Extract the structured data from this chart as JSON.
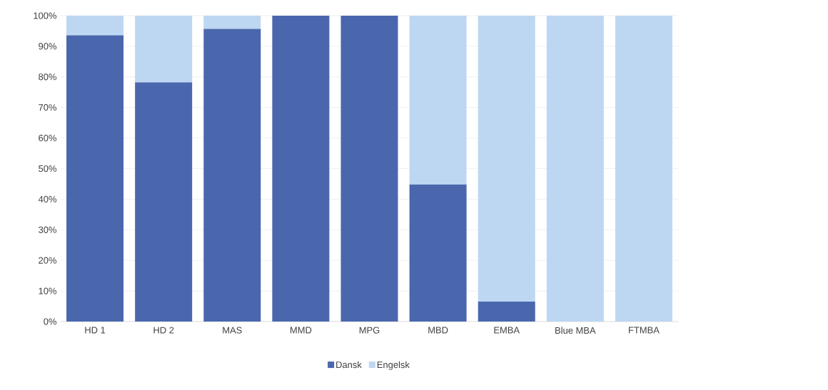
{
  "chart_data": {
    "type": "bar",
    "stacked": true,
    "categories": [
      "HD 1",
      "HD 2",
      "MAS",
      "MMD",
      "MPG",
      "MBD",
      "EMBA",
      "Blue MBA",
      "FTMBA"
    ],
    "series": [
      {
        "name": "Dansk",
        "color": "#4a67ad",
        "values": [
          93.6,
          78.2,
          95.7,
          100,
          100,
          44.8,
          6.5,
          0,
          0
        ]
      },
      {
        "name": "Engelsk",
        "color": "#bdd7f3",
        "values": [
          6.4,
          21.8,
          4.3,
          0,
          0,
          55.2,
          93.5,
          100,
          100
        ]
      }
    ],
    "ylim": [
      0,
      100
    ],
    "yticks": [
      {
        "value": 0,
        "label": "0%"
      },
      {
        "value": 10,
        "label": "10%"
      },
      {
        "value": 20,
        "label": "20%"
      },
      {
        "value": 30,
        "label": "30%"
      },
      {
        "value": 40,
        "label": "40%"
      },
      {
        "value": 50,
        "label": "50%"
      },
      {
        "value": 60,
        "label": "60%"
      },
      {
        "value": 70,
        "label": "70%"
      },
      {
        "value": 80,
        "label": "80%"
      },
      {
        "value": 90,
        "label": "90%"
      },
      {
        "value": 100,
        "label": "100%"
      }
    ],
    "grid": "y",
    "legend": "bottom"
  }
}
